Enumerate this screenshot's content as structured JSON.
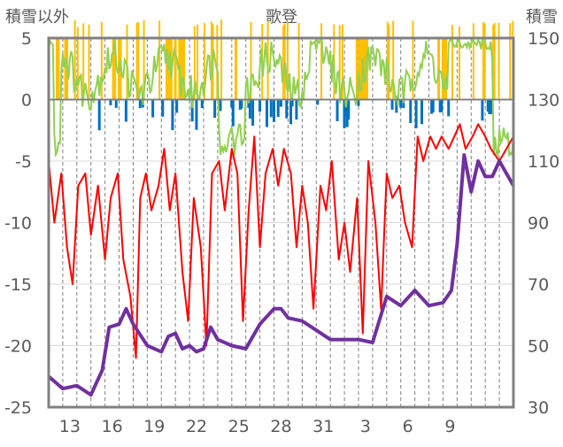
{
  "chart_data": {
    "type": "line",
    "title": "歌登",
    "y_left_label": "積雪以外",
    "y_right_label": "積雪",
    "y_left_range": [
      -25,
      5
    ],
    "y_left_ticks": [
      "5",
      "0",
      "-5",
      "-10",
      "-15",
      "-20",
      "-25"
    ],
    "y_left_tick_values": [
      5,
      0,
      -5,
      -10,
      -15,
      -20,
      -25
    ],
    "y_right_range": [
      30,
      150
    ],
    "y_right_ticks": [
      "150",
      "130",
      "110",
      "90",
      "70",
      "50",
      "30"
    ],
    "y_right_tick_values": [
      150,
      130,
      110,
      90,
      70,
      50,
      30
    ],
    "x_range_days": [
      0,
      33
    ],
    "x_ticks": [
      "13",
      "16",
      "19",
      "22",
      "25",
      "28",
      "31",
      "3",
      "6",
      "9"
    ],
    "x_tick_values": [
      1.5,
      4.5,
      7.5,
      10.5,
      13.5,
      16.5,
      19.5,
      22.5,
      25.5,
      28.5
    ],
    "grid": "vertical-dashed-daily",
    "colors": {
      "temperature": "#ff0000",
      "snow_depth": "#7030a0",
      "sunshine": "#92d050",
      "snowfall": "#ffc000",
      "precip": "#0070c0",
      "zero_line": "#808080",
      "frame": "#808080"
    },
    "series": [
      {
        "key": "temperature",
        "axis": "left",
        "points": [
          [
            0,
            -5
          ],
          [
            0.4,
            -10
          ],
          [
            0.9,
            -6
          ],
          [
            1.3,
            -12
          ],
          [
            1.7,
            -15
          ],
          [
            2.1,
            -7
          ],
          [
            2.6,
            -6
          ],
          [
            3,
            -11
          ],
          [
            3.5,
            -7
          ],
          [
            4,
            -13
          ],
          [
            4.4,
            -8
          ],
          [
            4.9,
            -6
          ],
          [
            5.3,
            -13
          ],
          [
            5.8,
            -16
          ],
          [
            6.2,
            -21
          ],
          [
            6.5,
            -8
          ],
          [
            6.9,
            -6
          ],
          [
            7.3,
            -9
          ],
          [
            7.8,
            -7
          ],
          [
            8.2,
            -4
          ],
          [
            8.6,
            -9
          ],
          [
            9,
            -6
          ],
          [
            9.5,
            -14
          ],
          [
            9.9,
            -18
          ],
          [
            10.3,
            -8
          ],
          [
            10.8,
            -12
          ],
          [
            11.2,
            -20
          ],
          [
            11.6,
            -6
          ],
          [
            12.1,
            -5
          ],
          [
            12.5,
            -9
          ],
          [
            13,
            -4
          ],
          [
            13.4,
            -6
          ],
          [
            13.8,
            -18
          ],
          [
            14.2,
            -9
          ],
          [
            14.6,
            -3
          ],
          [
            15,
            -12
          ],
          [
            15.4,
            -6
          ],
          [
            15.9,
            -4
          ],
          [
            16.3,
            -7
          ],
          [
            16.7,
            -4
          ],
          [
            17.2,
            -6
          ],
          [
            17.6,
            -12
          ],
          [
            18,
            -7
          ],
          [
            18.4,
            -10
          ],
          [
            18.8,
            -17
          ],
          [
            19.3,
            -7
          ],
          [
            19.7,
            -9
          ],
          [
            20.1,
            -5
          ],
          [
            20.6,
            -13
          ],
          [
            21,
            -10
          ],
          [
            21.4,
            -14
          ],
          [
            21.9,
            -8
          ],
          [
            22.3,
            -19
          ],
          [
            22.7,
            -5
          ],
          [
            23.2,
            -10
          ],
          [
            23.6,
            -17
          ],
          [
            24,
            -6
          ],
          [
            24.4,
            -8
          ],
          [
            24.9,
            -7
          ],
          [
            25.3,
            -10
          ],
          [
            25.8,
            -12
          ],
          [
            26.2,
            -3
          ],
          [
            26.6,
            -5
          ],
          [
            27.1,
            -3
          ],
          [
            27.5,
            -4
          ],
          [
            27.9,
            -3
          ],
          [
            28.4,
            -4
          ],
          [
            28.8,
            -3
          ],
          [
            29.2,
            -2
          ],
          [
            29.6,
            -4
          ],
          [
            30.1,
            -3
          ],
          [
            30.5,
            -2
          ],
          [
            31,
            -3
          ],
          [
            31.4,
            -4
          ],
          [
            32,
            -5
          ],
          [
            33,
            -3
          ]
        ]
      },
      {
        "key": "snow_depth",
        "axis": "right",
        "points": [
          [
            0,
            40
          ],
          [
            1,
            36
          ],
          [
            2,
            37
          ],
          [
            3,
            34
          ],
          [
            3.8,
            42
          ],
          [
            4.3,
            56
          ],
          [
            5,
            57
          ],
          [
            5.5,
            62
          ],
          [
            6,
            57
          ],
          [
            7,
            50
          ],
          [
            8,
            48
          ],
          [
            8.5,
            53
          ],
          [
            9,
            54
          ],
          [
            9.5,
            49
          ],
          [
            10,
            50
          ],
          [
            10.5,
            48
          ],
          [
            11,
            49
          ],
          [
            11.5,
            56
          ],
          [
            12,
            52
          ],
          [
            13,
            50
          ],
          [
            14,
            49
          ],
          [
            15,
            57
          ],
          [
            16,
            62
          ],
          [
            16.5,
            62
          ],
          [
            17,
            59
          ],
          [
            18,
            58
          ],
          [
            19,
            55
          ],
          [
            20,
            52
          ],
          [
            21,
            52
          ],
          [
            22,
            52
          ],
          [
            23,
            51
          ],
          [
            24,
            66
          ],
          [
            25,
            63
          ],
          [
            26,
            68
          ],
          [
            27,
            63
          ],
          [
            28,
            64
          ],
          [
            28.6,
            68
          ],
          [
            29,
            83
          ],
          [
            29.5,
            112
          ],
          [
            30,
            100
          ],
          [
            30.5,
            110
          ],
          [
            31,
            105
          ],
          [
            31.5,
            105
          ],
          [
            32,
            110
          ],
          [
            33,
            102
          ]
        ]
      }
    ]
  }
}
